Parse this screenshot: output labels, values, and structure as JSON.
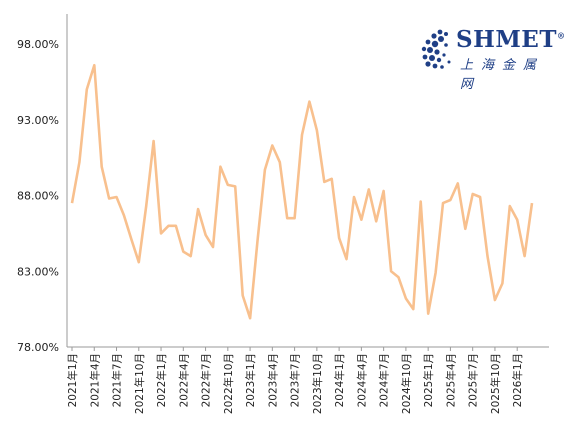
{
  "logo": {
    "name": "SHMET",
    "reg": "®",
    "subtitle": "上海金属网",
    "color": "#1f3f86"
  },
  "chart_data": {
    "type": "line",
    "title": "",
    "xlabel": "",
    "ylabel": "",
    "ylim": [
      78.0,
      98.0
    ],
    "yticks": [
      "78.00%",
      "83.00%",
      "88.00%",
      "93.00%",
      "98.00%"
    ],
    "ytick_values": [
      78,
      83,
      88,
      93,
      98
    ],
    "grid": false,
    "legend": "none",
    "line_color": "#f8c08e",
    "xtick_labels": [
      "2021年1月",
      "2021年4月",
      "2021年7月",
      "2021年10月",
      "2022年1月",
      "2022年4月",
      "2022年7月",
      "2022年10月",
      "2023年1月",
      "2023年4月",
      "2023年7月",
      "2023年10月",
      "2024年1月",
      "2024年4月",
      "2024年7月",
      "2024年10月",
      "2025年1月",
      "2025年4月",
      "2025年7月",
      "2025年10月",
      "2026年1月"
    ],
    "series": [
      {
        "values": [
          87.5,
          90.2,
          95.0,
          96.6,
          89.9,
          87.8,
          87.9,
          86.7,
          85.1,
          83.6,
          87.3,
          91.6,
          85.5,
          86.0,
          86.0,
          84.3,
          84.0,
          87.1,
          85.4,
          84.6,
          89.9,
          88.7,
          88.6,
          81.4,
          79.9,
          85.0,
          89.7,
          91.3,
          90.2,
          86.5,
          86.5,
          92.0,
          94.2,
          92.3,
          88.9,
          89.1,
          85.2,
          83.8,
          87.9,
          86.4,
          88.4,
          86.3,
          88.3,
          83.0,
          82.6,
          81.2,
          80.5,
          87.6,
          80.2,
          82.9,
          87.5,
          87.7,
          88.8,
          85.8,
          88.1,
          87.9,
          84.0,
          81.1,
          82.2,
          87.3,
          86.4,
          84.0,
          87.5
        ]
      }
    ]
  }
}
